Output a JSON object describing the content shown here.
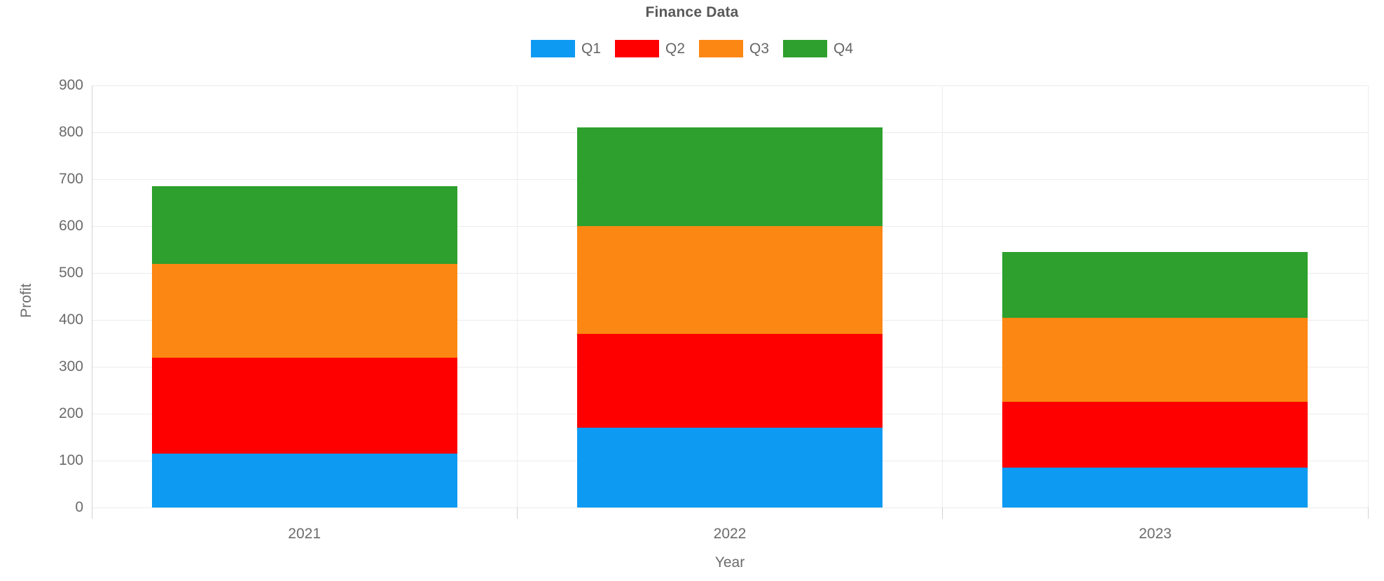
{
  "chart_data": {
    "type": "bar",
    "stacked": true,
    "title": "Finance Data",
    "xlabel": "Year",
    "ylabel": "Profit",
    "categories": [
      "2021",
      "2022",
      "2023"
    ],
    "series": [
      {
        "name": "Q1",
        "color": "#0d9af2",
        "values": [
          115,
          170,
          85
        ]
      },
      {
        "name": "Q2",
        "color": "#fe0000",
        "values": [
          205,
          200,
          140
        ]
      },
      {
        "name": "Q3",
        "color": "#fc8712",
        "values": [
          200,
          230,
          180
        ]
      },
      {
        "name": "Q4",
        "color": "#2da02d",
        "values": [
          165,
          210,
          140
        ]
      }
    ],
    "stack_totals": [
      685,
      810,
      545
    ],
    "ylim": [
      0,
      900
    ],
    "ytick_step": 100,
    "ytick_labels": [
      "0",
      "100",
      "200",
      "300",
      "400",
      "500",
      "600",
      "700",
      "800",
      "900"
    ],
    "grid": true,
    "legend_position": "top",
    "legend_labels": [
      "Q1",
      "Q2",
      "Q3",
      "Q4"
    ],
    "background_color": "#ffffff",
    "gridline_color": "#ececec",
    "axis_line_color": "#d2d2d2",
    "text_color": "#6b6b6b",
    "title_color": "#595959"
  }
}
